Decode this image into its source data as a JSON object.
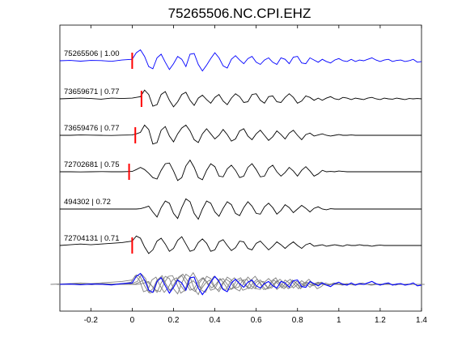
{
  "chart_data": {
    "type": "line",
    "title": "75265506.NC.CPI.EHZ",
    "xlabel": "",
    "ylabel": "",
    "xlim": [
      -0.35,
      1.4
    ],
    "xticks": [
      -0.2,
      0,
      0.2,
      0.4,
      0.6,
      0.8,
      1,
      1.2,
      1.4
    ],
    "xtick_labels": [
      "-0.2",
      "0",
      "0.2",
      "0.4",
      "0.6",
      "0.8",
      "1",
      "1.2",
      "1.4"
    ],
    "grid": false,
    "colors": {
      "master": "#0000ff",
      "trace": "#000000",
      "overlay": "#808080",
      "pick": "#ff0000"
    },
    "series": [
      {
        "label": "75265506 | 1.00",
        "pick_time": 0.0,
        "color": "#0000ff",
        "t": [
          -0.35,
          -0.3,
          -0.25,
          -0.2,
          -0.15,
          -0.1,
          -0.05,
          0,
          0.02,
          0.04,
          0.06,
          0.08,
          0.1,
          0.12,
          0.14,
          0.16,
          0.18,
          0.2,
          0.22,
          0.24,
          0.26,
          0.28,
          0.3,
          0.32,
          0.34,
          0.36,
          0.38,
          0.4,
          0.42,
          0.44,
          0.46,
          0.48,
          0.5,
          0.52,
          0.54,
          0.56,
          0.58,
          0.6,
          0.62,
          0.64,
          0.66,
          0.68,
          0.7,
          0.72,
          0.74,
          0.76,
          0.78,
          0.8,
          0.82,
          0.84,
          0.86,
          0.88,
          0.9,
          0.92,
          0.94,
          0.96,
          0.98,
          1,
          1.02,
          1.04,
          1.06,
          1.08,
          1.1,
          1.12,
          1.14,
          1.16,
          1.18,
          1.2,
          1.22,
          1.24,
          1.26,
          1.28,
          1.3,
          1.32,
          1.34,
          1.36,
          1.38,
          1.4
        ],
        "y": [
          0,
          0.02,
          -0.03,
          0.02,
          0.01,
          -0.04,
          0.05,
          0.1,
          0.55,
          0.75,
          0.3,
          -0.4,
          -0.55,
          0.2,
          0.45,
          -0.1,
          -0.6,
          -0.2,
          0.3,
          0.1,
          -0.4,
          0.45,
          0.5,
          -0.25,
          -0.7,
          -0.3,
          0.15,
          0.55,
          0.2,
          -0.35,
          -0.5,
          0.1,
          0.35,
          0.05,
          -0.2,
          0.15,
          0.3,
          -0.1,
          -0.25,
          0.05,
          0.2,
          -0.1,
          -0.25,
          0.2,
          0.1,
          -0.2,
          0.25,
          0.3,
          -0.15,
          -0.2,
          0.2,
          0.05,
          -0.1,
          0.1,
          -0.05,
          -0.15,
          0.05,
          0.15,
          0,
          -0.05,
          0.1,
          -0.05,
          0.05,
          0,
          0.1,
          0.2,
          0.05,
          -0.05,
          0.05,
          0.1,
          -0.05,
          0.02,
          0.05,
          -0.05,
          0,
          0.1,
          -0.1,
          -0.05
        ]
      },
      {
        "label": "73659671 | 0.77",
        "pick_time": 0.045,
        "color": "#000000",
        "t": [
          -0.35,
          -0.3,
          -0.25,
          -0.2,
          -0.15,
          -0.1,
          -0.05,
          0,
          0.02,
          0.04,
          0.06,
          0.08,
          0.1,
          0.12,
          0.14,
          0.16,
          0.18,
          0.2,
          0.22,
          0.24,
          0.26,
          0.28,
          0.3,
          0.32,
          0.34,
          0.36,
          0.38,
          0.4,
          0.42,
          0.44,
          0.46,
          0.48,
          0.5,
          0.52,
          0.54,
          0.56,
          0.58,
          0.6,
          0.62,
          0.64,
          0.66,
          0.68,
          0.7,
          0.72,
          0.74,
          0.76,
          0.78,
          0.8,
          0.82,
          0.84,
          0.86,
          0.88,
          0.9,
          0.92,
          0.94,
          0.96,
          0.98,
          1,
          1.02,
          1.04,
          1.06,
          1.08,
          1.1,
          1.12,
          1.14,
          1.16,
          1.18,
          1.2,
          1.22,
          1.24,
          1.26,
          1.28,
          1.3,
          1.32,
          1.34,
          1.36,
          1.38,
          1.4
        ],
        "y": [
          0,
          0.03,
          0.05,
          0.02,
          -0.02,
          0.05,
          0.02,
          0.05,
          0.1,
          0.15,
          0.6,
          0.3,
          -0.5,
          -0.4,
          0.3,
          0.5,
          -0.1,
          -0.55,
          -0.2,
          0.3,
          0.45,
          -0.1,
          -0.45,
          0.05,
          0.25,
          -0.05,
          -0.3,
          0.1,
          0.3,
          -0.15,
          -0.4,
          0.05,
          0.35,
          0.15,
          -0.25,
          -0.2,
          0.3,
          0.35,
          -0.1,
          -0.3,
          0.15,
          0.2,
          -0.2,
          -0.25,
          0.1,
          0.35,
          0.1,
          -0.3,
          -0.15,
          0.2,
          0.1,
          -0.1,
          0.05,
          -0.1,
          0.05,
          0.15,
          0,
          -0.05,
          0.1,
          0.05,
          -0.05,
          0.05,
          0,
          -0.05,
          0.05,
          0.1,
          0,
          -0.05,
          0.05,
          0,
          -0.02,
          0.05,
          0,
          -0.05,
          0.02,
          0,
          0.02,
          0
        ]
      },
      {
        "label": "73659476 | 0.77",
        "pick_time": 0.015,
        "color": "#000000",
        "t": [
          -0.35,
          -0.3,
          -0.25,
          -0.2,
          -0.15,
          -0.1,
          -0.05,
          0,
          0.02,
          0.04,
          0.06,
          0.08,
          0.1,
          0.12,
          0.14,
          0.16,
          0.18,
          0.2,
          0.22,
          0.24,
          0.26,
          0.28,
          0.3,
          0.32,
          0.34,
          0.36,
          0.38,
          0.4,
          0.42,
          0.44,
          0.46,
          0.48,
          0.5,
          0.52,
          0.54,
          0.56,
          0.58,
          0.6,
          0.62,
          0.64,
          0.66,
          0.68,
          0.7,
          0.72,
          0.74,
          0.76,
          0.78,
          0.8,
          0.82,
          0.84,
          0.86,
          0.88,
          0.9,
          0.92,
          0.94,
          0.96,
          0.98,
          1,
          1.02,
          1.04,
          1.06,
          1.08,
          1.1,
          1.12,
          1.14,
          1.16,
          1.18,
          1.2,
          1.22,
          1.24,
          1.26,
          1.28,
          1.3,
          1.32,
          1.34,
          1.36,
          1.38,
          1.4
        ],
        "y": [
          0,
          0,
          0.02,
          0.01,
          0,
          -0.01,
          0.01,
          0.02,
          0.1,
          0.2,
          0.7,
          0.4,
          -0.6,
          -0.5,
          0.35,
          0.6,
          -0.05,
          -0.45,
          0.1,
          0.5,
          0.7,
          0.3,
          -0.3,
          -0.5,
          0.1,
          0.45,
          0.1,
          -0.25,
          0,
          0.4,
          0.05,
          -0.4,
          -0.25,
          0.3,
          0.45,
          -0.05,
          -0.3,
          0.1,
          0.35,
          0,
          -0.35,
          -0.1,
          0.3,
          0.05,
          -0.25,
          0.15,
          0.35,
          0,
          -0.3,
          0.05,
          0.15,
          -0.05,
          0.02,
          0.1,
          0,
          -0.05,
          0,
          0.05,
          0,
          0,
          0.02,
          0,
          0,
          0,
          0,
          0,
          0,
          0,
          0,
          0,
          0,
          0,
          0,
          0,
          0,
          0,
          0,
          0
        ]
      },
      {
        "label": "72702681 | 0.75",
        "pick_time": -0.015,
        "color": "#000000",
        "t": [
          -0.35,
          -0.3,
          -0.25,
          -0.2,
          -0.15,
          -0.1,
          -0.05,
          0,
          0.02,
          0.04,
          0.06,
          0.08,
          0.1,
          0.12,
          0.14,
          0.16,
          0.18,
          0.2,
          0.22,
          0.24,
          0.26,
          0.28,
          0.3,
          0.32,
          0.34,
          0.36,
          0.38,
          0.4,
          0.42,
          0.44,
          0.46,
          0.48,
          0.5,
          0.52,
          0.54,
          0.56,
          0.58,
          0.6,
          0.62,
          0.64,
          0.66,
          0.68,
          0.7,
          0.72,
          0.74,
          0.76,
          0.78,
          0.8,
          0.82,
          0.84,
          0.86,
          0.88,
          0.9,
          0.92,
          0.94,
          0.96,
          0.98,
          1,
          1.02,
          1.04,
          1.06,
          1.08,
          1.1,
          1.12,
          1.14,
          1.16,
          1.18,
          1.2,
          1.22,
          1.24,
          1.26,
          1.28,
          1.3,
          1.32,
          1.34,
          1.36,
          1.38,
          1.4
        ],
        "y": [
          0,
          0,
          -0.01,
          0,
          0.01,
          0,
          0,
          0.02,
          0.15,
          0.3,
          0.15,
          -0.1,
          -0.4,
          -0.5,
          0.1,
          0.55,
          0.6,
          0.05,
          -0.6,
          -0.4,
          0.4,
          0.8,
          0.3,
          -0.4,
          -0.55,
          0.1,
          0.55,
          0.35,
          -0.3,
          -0.35,
          0.2,
          0.45,
          0.1,
          -0.4,
          -0.3,
          0.3,
          0.55,
          0.15,
          -0.35,
          -0.3,
          0.25,
          0.45,
          0,
          -0.3,
          -0.05,
          0.3,
          0.05,
          -0.3,
          0.1,
          0.35,
          0.05,
          -0.3,
          -0.15,
          0.1,
          0,
          0.02,
          0,
          0.05,
          0.02,
          0,
          0,
          0,
          0,
          0,
          0,
          0,
          0,
          0,
          0,
          0,
          0,
          0,
          0,
          0,
          0,
          0,
          0,
          0
        ]
      },
      {
        "label": "494302 | 0.72",
        "pick_time": null,
        "color": "#000000",
        "t": [
          -0.35,
          -0.3,
          -0.25,
          -0.2,
          -0.15,
          -0.1,
          -0.05,
          0,
          0.02,
          0.04,
          0.06,
          0.08,
          0.1,
          0.12,
          0.14,
          0.16,
          0.18,
          0.2,
          0.22,
          0.24,
          0.26,
          0.28,
          0.3,
          0.32,
          0.34,
          0.36,
          0.38,
          0.4,
          0.42,
          0.44,
          0.46,
          0.48,
          0.5,
          0.52,
          0.54,
          0.56,
          0.58,
          0.6,
          0.62,
          0.64,
          0.66,
          0.68,
          0.7,
          0.72,
          0.74,
          0.76,
          0.78,
          0.8,
          0.82,
          0.84,
          0.86,
          0.88,
          0.9,
          0.92,
          0.94,
          0.96,
          0.98,
          1,
          1.02,
          1.04,
          1.06,
          1.08,
          1.1,
          1.12,
          1.14,
          1.16,
          1.18,
          1.2,
          1.22,
          1.24,
          1.26,
          1.28,
          1.3,
          1.32,
          1.34,
          1.36,
          1.38,
          1.4
        ],
        "y": [
          0,
          0,
          0,
          0,
          0,
          0,
          0,
          0,
          0,
          0.02,
          0.1,
          0.2,
          -0.2,
          -0.55,
          0.1,
          0.55,
          0.4,
          -0.3,
          -0.65,
          0.1,
          0.7,
          0.5,
          -0.3,
          -0.7,
          0,
          0.55,
          0.4,
          -0.2,
          -0.5,
          0.05,
          0.5,
          0.3,
          -0.3,
          -0.45,
          0.1,
          0.5,
          0.2,
          -0.3,
          -0.35,
          0.15,
          0.4,
          0.1,
          -0.35,
          -0.1,
          0.3,
          0.1,
          -0.25,
          0,
          0.25,
          0.05,
          -0.2,
          0.05,
          0.15,
          0,
          -0.05,
          0.02,
          0,
          0,
          0,
          0,
          0,
          0,
          0,
          0,
          0,
          0,
          0,
          0,
          0,
          0,
          0,
          0,
          0,
          0,
          0,
          0,
          0,
          0
        ]
      },
      {
        "label": "72704131 | 0.71",
        "pick_time": 0.0,
        "color": "#000000",
        "t": [
          -0.35,
          -0.3,
          -0.25,
          -0.2,
          -0.15,
          -0.1,
          -0.05,
          0,
          0.02,
          0.04,
          0.06,
          0.08,
          0.1,
          0.12,
          0.14,
          0.16,
          0.18,
          0.2,
          0.22,
          0.24,
          0.26,
          0.28,
          0.3,
          0.32,
          0.34,
          0.36,
          0.38,
          0.4,
          0.42,
          0.44,
          0.46,
          0.48,
          0.5,
          0.52,
          0.54,
          0.56,
          0.58,
          0.6,
          0.62,
          0.64,
          0.66,
          0.68,
          0.7,
          0.72,
          0.74,
          0.76,
          0.78,
          0.8,
          0.82,
          0.84,
          0.86,
          0.88,
          0.9,
          0.92,
          0.94,
          0.96,
          0.98,
          1,
          1.02,
          1.04,
          1.06,
          1.08,
          1.1,
          1.12,
          1.14,
          1.16,
          1.18,
          1.2,
          1.22,
          1.24,
          1.26,
          1.28,
          1.3,
          1.32,
          1.34,
          1.36,
          1.38,
          1.4
        ],
        "y": [
          0,
          0.05,
          0.1,
          0.05,
          0.1,
          0.15,
          0.2,
          0.3,
          0.65,
          0.5,
          -0.1,
          -0.55,
          -0.3,
          0.3,
          0.5,
          0.1,
          -0.4,
          -0.2,
          0.35,
          0.6,
          0.1,
          -0.4,
          -0.3,
          0.2,
          0.45,
          0.15,
          -0.4,
          -0.3,
          0.25,
          0.4,
          0,
          -0.35,
          -0.15,
          0.3,
          0.25,
          -0.2,
          -0.3,
          0.15,
          0.3,
          0,
          -0.3,
          -0.05,
          0.25,
          0.05,
          -0.2,
          0.05,
          0.25,
          0,
          -0.2,
          0.05,
          0.15,
          -0.05,
          0,
          0.05,
          -0.05,
          0,
          0.05,
          0,
          -0.05,
          0.05,
          0,
          0,
          0.05,
          0,
          0,
          -0.05,
          0,
          0.02,
          0,
          0,
          0,
          0,
          0,
          0,
          0,
          0,
          0,
          0
        ]
      }
    ]
  }
}
